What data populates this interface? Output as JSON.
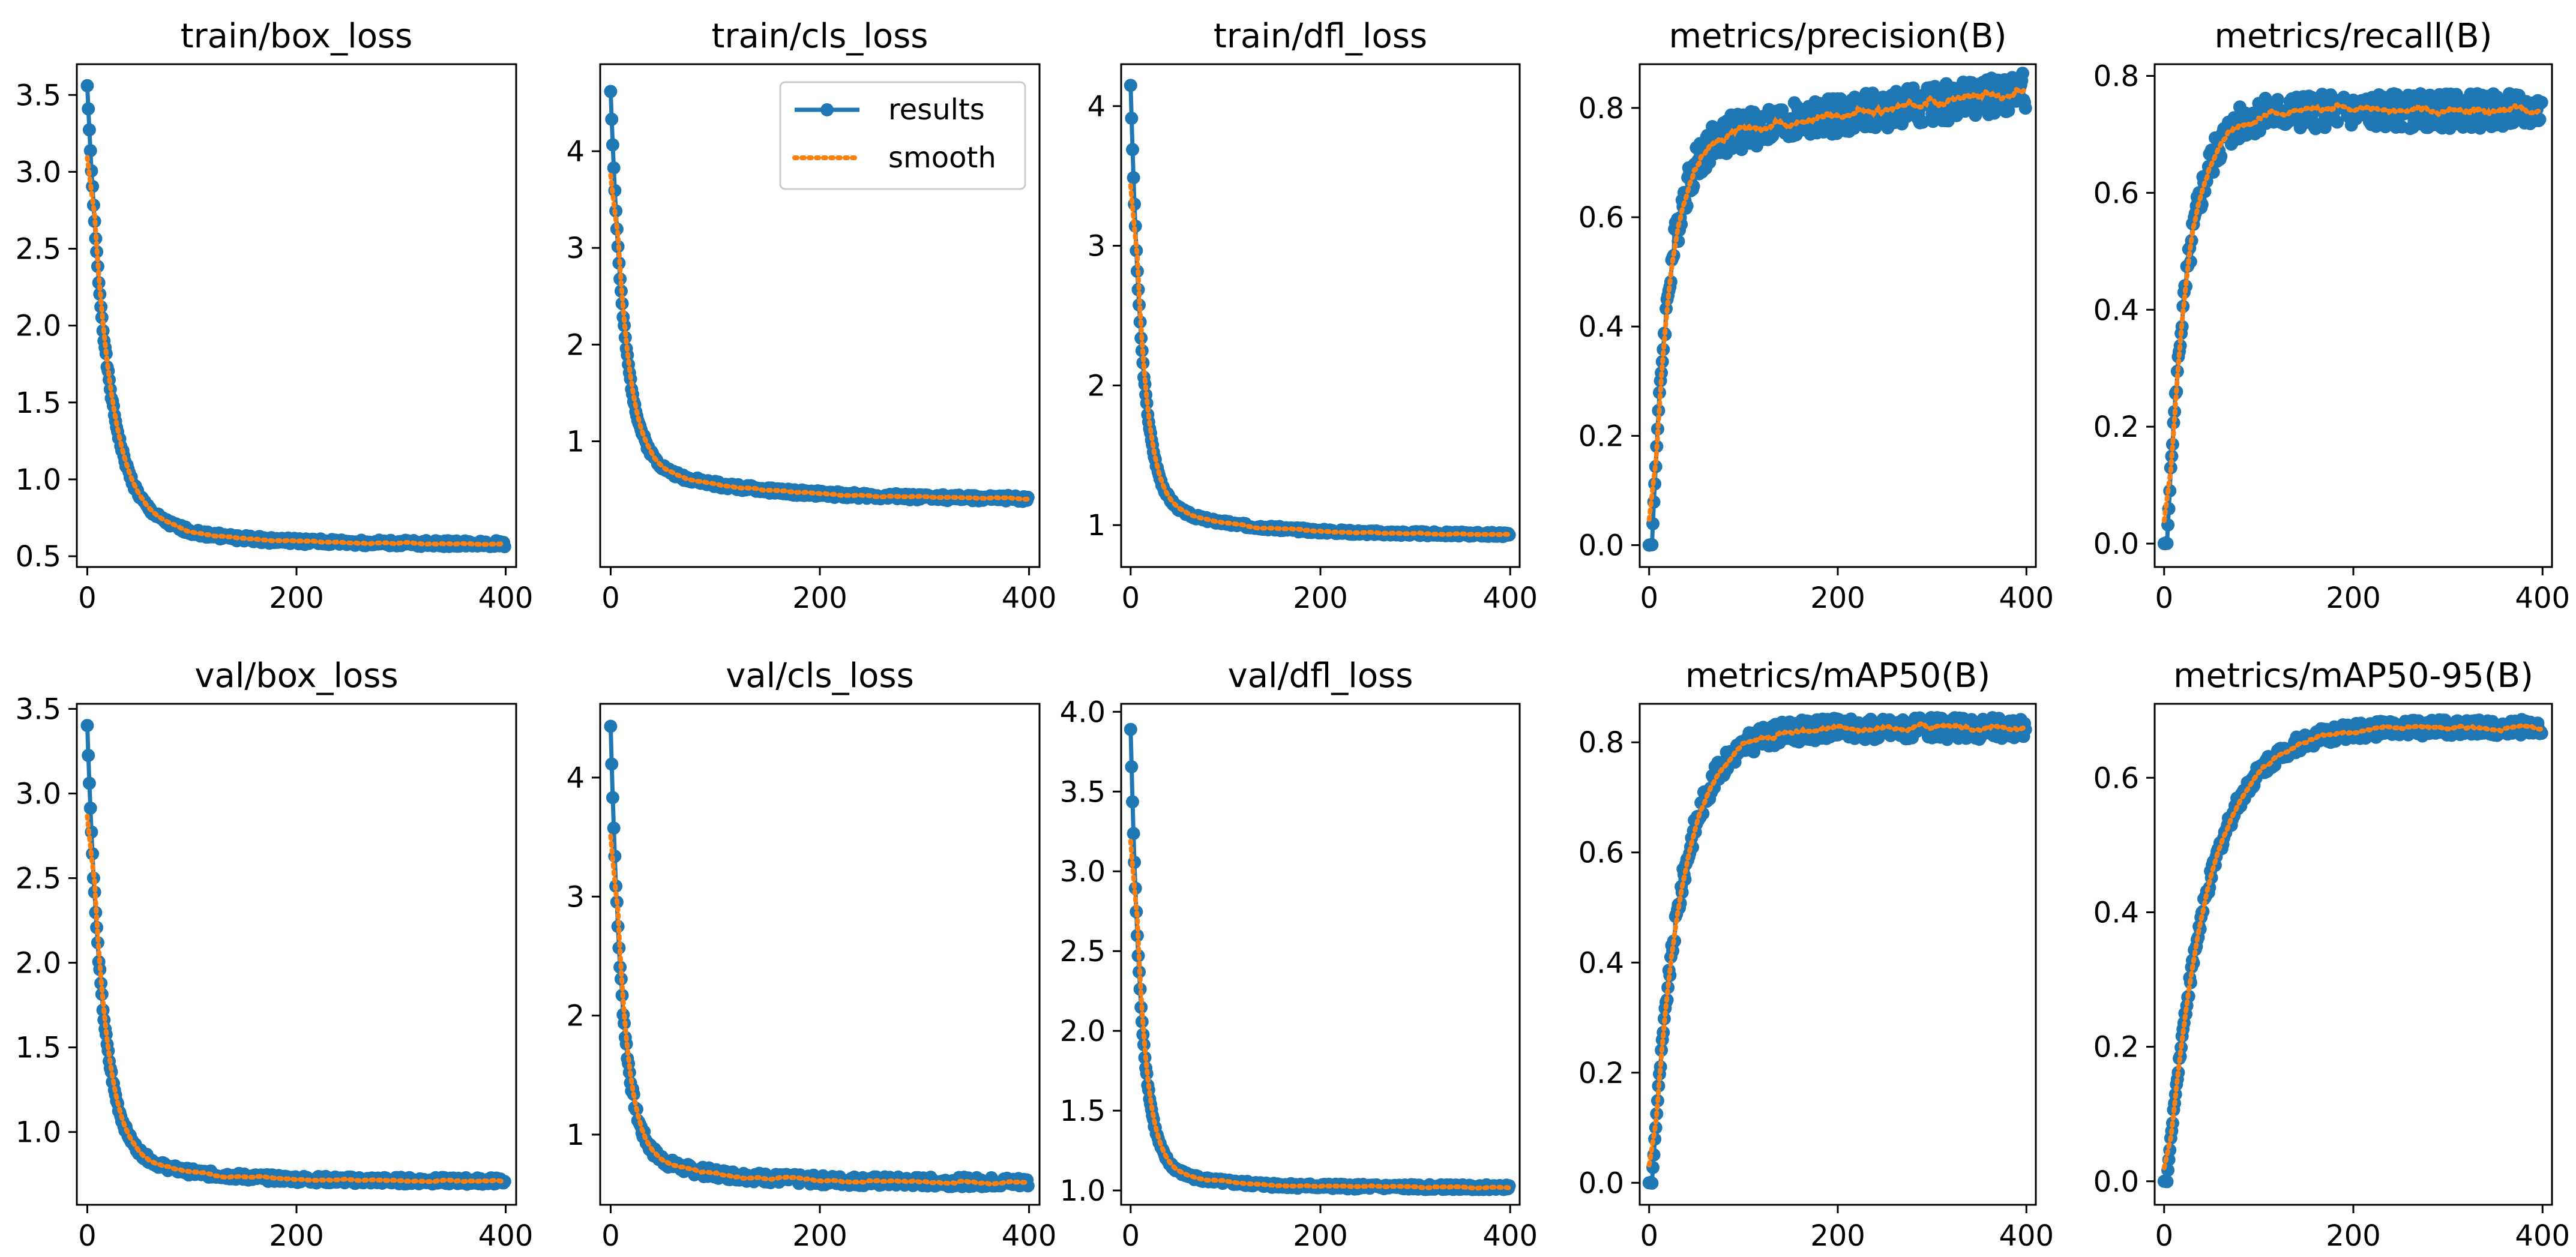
{
  "chart_data": [
    {
      "type": "line",
      "title": "train/box_loss",
      "xlim": [
        -10,
        410
      ],
      "ylim": [
        0.43,
        3.7
      ],
      "xticks": [
        0,
        200,
        400
      ],
      "xtick_labels": [
        "0",
        "200",
        "400"
      ],
      "yticks": [
        0.5,
        1.0,
        1.5,
        2.0,
        2.5,
        3.0,
        3.5
      ],
      "ytick_labels": [
        "0.5",
        "1.0",
        "1.5",
        "2.0",
        "2.5",
        "3.0",
        "3.5"
      ],
      "shape": "decay",
      "start": 3.56,
      "end": 0.58,
      "tau": 18,
      "tail": 70,
      "tail_frac": 0.1,
      "noise": 0.02,
      "trend": 0,
      "seed": 1
    },
    {
      "type": "line",
      "title": "train/cls_loss",
      "xlim": [
        -10,
        410
      ],
      "ylim": [
        -0.3,
        4.9
      ],
      "xticks": [
        0,
        200,
        400
      ],
      "xtick_labels": [
        "0",
        "200",
        "400"
      ],
      "yticks": [
        1,
        2,
        3,
        4
      ],
      "ytick_labels": [
        "1",
        "2",
        "3",
        "4"
      ],
      "shape": "decay",
      "start": 4.62,
      "end": 0.4,
      "tau": 13,
      "tail": 100,
      "tail_frac": 0.1,
      "noise": 0.03,
      "trend": 0,
      "seed": 2,
      "legend": {
        "entries": [
          "results",
          "smooth"
        ],
        "location": "upper right"
      }
    },
    {
      "type": "line",
      "title": "train/dfl_loss",
      "xlim": [
        -10,
        410
      ],
      "ylim": [
        0.7,
        4.3
      ],
      "xticks": [
        0,
        200,
        400
      ],
      "xtick_labels": [
        "0",
        "200",
        "400"
      ],
      "yticks": [
        1,
        2,
        3,
        4
      ],
      "ytick_labels": [
        "1",
        "2",
        "3",
        "4"
      ],
      "shape": "decay",
      "start": 4.15,
      "end": 0.93,
      "tau": 12,
      "tail": 90,
      "tail_frac": 0.08,
      "noise": 0.015,
      "trend": 0,
      "seed": 3
    },
    {
      "type": "line",
      "title": "metrics/precision(B)",
      "xlim": [
        -10,
        410
      ],
      "ylim": [
        -0.04,
        0.88
      ],
      "xticks": [
        0,
        200,
        400
      ],
      "xtick_labels": [
        "0",
        "200",
        "400"
      ],
      "yticks": [
        0.0,
        0.2,
        0.4,
        0.6,
        0.8
      ],
      "ytick_labels": [
        "0.0",
        "0.2",
        "0.4",
        "0.6",
        "0.8"
      ],
      "shape": "rise",
      "start": 0.0,
      "end": 0.74,
      "tau": 18,
      "noise": 0.035,
      "trend": 0.09,
      "seed": 4
    },
    {
      "type": "line",
      "title": "metrics/recall(B)",
      "xlim": [
        -10,
        410
      ],
      "ylim": [
        -0.04,
        0.82
      ],
      "xticks": [
        0,
        200,
        400
      ],
      "xtick_labels": [
        "0",
        "200",
        "400"
      ],
      "yticks": [
        0.0,
        0.2,
        0.4,
        0.6,
        0.8
      ],
      "ytick_labels": [
        "0.0",
        "0.2",
        "0.4",
        "0.6",
        "0.8"
      ],
      "shape": "rise",
      "start": 0.0,
      "end": 0.74,
      "tau": 22,
      "noise": 0.03,
      "trend": 0,
      "seed": 5
    },
    {
      "type": "line",
      "title": "val/box_loss",
      "xlim": [
        -10,
        410
      ],
      "ylim": [
        0.57,
        3.53
      ],
      "xticks": [
        0,
        200,
        400
      ],
      "xtick_labels": [
        "0",
        "200",
        "400"
      ],
      "yticks": [
        1.0,
        1.5,
        2.0,
        2.5,
        3.0,
        3.5
      ],
      "ytick_labels": [
        "1.0",
        "1.5",
        "2.0",
        "2.5",
        "3.0",
        "3.5"
      ],
      "shape": "decay",
      "start": 3.4,
      "end": 0.71,
      "tau": 14,
      "tail": 70,
      "tail_frac": 0.08,
      "noise": 0.02,
      "trend": 0,
      "seed": 6
    },
    {
      "type": "line",
      "title": "val/cls_loss",
      "xlim": [
        -10,
        410
      ],
      "ylim": [
        0.41,
        4.62
      ],
      "xticks": [
        0,
        200,
        400
      ],
      "xtick_labels": [
        "0",
        "200",
        "400"
      ],
      "yticks": [
        1,
        2,
        3,
        4
      ],
      "ytick_labels": [
        "1",
        "2",
        "3",
        "4"
      ],
      "shape": "decay",
      "start": 4.43,
      "end": 0.6,
      "tau": 11,
      "tail": 70,
      "tail_frac": 0.08,
      "noise": 0.04,
      "trend": 0,
      "seed": 7
    },
    {
      "type": "line",
      "title": "val/dfl_loss",
      "xlim": [
        -10,
        410
      ],
      "ylim": [
        0.91,
        4.05
      ],
      "xticks": [
        0,
        200,
        400
      ],
      "xtick_labels": [
        "0",
        "200",
        "400"
      ],
      "yticks": [
        1.0,
        1.5,
        2.0,
        2.5,
        3.0,
        3.5,
        4.0
      ],
      "ytick_labels": [
        "1.0",
        "1.5",
        "2.0",
        "2.5",
        "3.0",
        "3.5",
        "4.0"
      ],
      "shape": "decay",
      "start": 3.89,
      "end": 1.02,
      "tau": 11,
      "tail": 60,
      "tail_frac": 0.06,
      "noise": 0.015,
      "trend": 0,
      "seed": 8
    },
    {
      "type": "line",
      "title": "metrics/mAP50(B)",
      "xlim": [
        -10,
        410
      ],
      "ylim": [
        -0.04,
        0.87
      ],
      "xticks": [
        0,
        200,
        400
      ],
      "xtick_labels": [
        "0",
        "200",
        "400"
      ],
      "yticks": [
        0.0,
        0.2,
        0.4,
        0.6,
        0.8
      ],
      "ytick_labels": [
        "0.0",
        "0.2",
        "0.4",
        "0.6",
        "0.8"
      ],
      "shape": "rise",
      "start": 0.0,
      "end": 0.825,
      "tau": 30,
      "noise": 0.02,
      "trend": 0,
      "seed": 9
    },
    {
      "type": "line",
      "title": "metrics/mAP50-95(B)",
      "xlim": [
        -10,
        410
      ],
      "ylim": [
        -0.035,
        0.71
      ],
      "xticks": [
        0,
        200,
        400
      ],
      "xtick_labels": [
        "0",
        "200",
        "400"
      ],
      "yticks": [
        0.0,
        0.2,
        0.4,
        0.6
      ],
      "ytick_labels": [
        "0.0",
        "0.2",
        "0.4",
        "0.6"
      ],
      "shape": "rise",
      "start": 0.0,
      "end": 0.675,
      "tau": 42,
      "noise": 0.012,
      "trend": 0,
      "seed": 10
    }
  ],
  "colors": {
    "results": "#1f77b4",
    "smooth": "#ff7f0e",
    "axes": "#000000"
  }
}
